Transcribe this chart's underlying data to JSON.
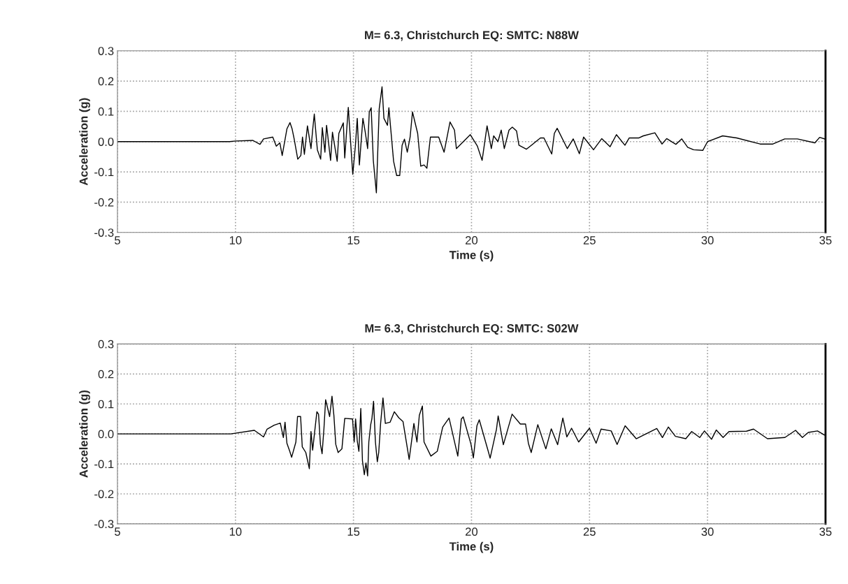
{
  "chart_data": [
    {
      "type": "line",
      "title": "M= 6.3, Christchurch EQ: SMTC: N88W",
      "xlabel": "Time (s)",
      "ylabel": "Acceleration (g)",
      "xlim": [
        5,
        35
      ],
      "ylim": [
        -0.3,
        0.3
      ],
      "xticks": [
        5,
        10,
        15,
        20,
        25,
        30,
        35
      ],
      "yticks": [
        -0.3,
        -0.2,
        -0.1,
        {
          "value": 0,
          "label": "0.0"
        },
        0.1,
        0.2,
        0.3
      ],
      "grid": true,
      "series": [
        {
          "color": "#000000",
          "x": [
            5,
            9.75,
            10,
            10.74,
            11.04,
            11.19,
            11.58,
            11.73,
            11.88,
            11.98,
            12.18,
            12.31,
            12.4,
            12.48,
            12.64,
            12.77,
            12.84,
            12.92,
            13.05,
            13.2,
            13.27,
            13.34,
            13.47,
            13.61,
            13.68,
            13.79,
            13.86,
            14.03,
            14.11,
            14.31,
            14.38,
            14.57,
            14.63,
            14.78,
            14.97,
            15.08,
            15.16,
            15.25,
            15.4,
            15.5,
            15.6,
            15.67,
            15.75,
            15.84,
            15.97,
            16.09,
            16.21,
            16.29,
            16.44,
            16.5,
            16.7,
            16.83,
            16.96,
            17.06,
            17.16,
            17.28,
            17.4,
            17.5,
            17.72,
            17.85,
            17.99,
            18.11,
            18.26,
            18.61,
            18.84,
            19.09,
            19.28,
            19.36,
            19.95,
            20.25,
            20.45,
            20.66,
            20.84,
            20.94,
            21.12,
            21.26,
            21.39,
            21.59,
            21.73,
            21.91,
            22.01,
            22.33,
            22.92,
            23.07,
            23.4,
            23.51,
            23.63,
            24.06,
            24.31,
            24.57,
            24.75,
            25.17,
            25.52,
            25.87,
            26.14,
            26.5,
            26.68,
            27.08,
            27.28,
            27.77,
            28.07,
            28.27,
            28.66,
            28.91,
            29.16,
            29.41,
            29.8,
            30.0,
            30.64,
            31.24,
            32.23,
            32.77,
            33.27,
            33.81,
            34.55,
            34.75,
            35.0
          ],
          "values": [
            0,
            0,
            0.002,
            0.004,
            -0.009,
            0.009,
            0.015,
            -0.015,
            -0.004,
            -0.046,
            0.042,
            0.063,
            0.042,
            0.012,
            -0.058,
            -0.046,
            0.015,
            -0.042,
            0.052,
            -0.023,
            0.038,
            0.091,
            -0.027,
            -0.058,
            0.046,
            -0.035,
            0.054,
            -0.062,
            0.031,
            -0.065,
            0.027,
            0.062,
            -0.054,
            0.113,
            -0.108,
            -0.015,
            0.077,
            -0.077,
            0.077,
            0.031,
            -0.023,
            0.098,
            0.112,
            -0.062,
            -0.169,
            0.108,
            0.181,
            0.077,
            0.054,
            0.112,
            -0.065,
            -0.112,
            -0.112,
            -0.012,
            0.008,
            -0.035,
            0.015,
            0.098,
            0.027,
            -0.081,
            -0.077,
            -0.088,
            0.015,
            0.015,
            -0.035,
            0.065,
            0.038,
            -0.023,
            0.023,
            -0.015,
            -0.062,
            0.052,
            -0.023,
            0.019,
            0.0,
            0.038,
            -0.023,
            0.038,
            0.048,
            0.035,
            -0.012,
            -0.025,
            0.012,
            0.012,
            -0.041,
            0.027,
            0.044,
            -0.023,
            0.009,
            -0.04,
            0.015,
            -0.027,
            0.01,
            -0.017,
            0.023,
            -0.012,
            0.012,
            0.012,
            0.019,
            0.029,
            -0.008,
            0.01,
            -0.009,
            0.009,
            -0.019,
            -0.027,
            -0.029,
            0.0,
            0.019,
            0.012,
            -0.008,
            -0.008,
            0.009,
            0.009,
            -0.004,
            0.014,
            0.008
          ]
        }
      ]
    },
    {
      "type": "line",
      "title": "M= 6.3, Christchurch EQ: SMTC: S02W",
      "xlabel": "Time (s)",
      "ylabel": "Acceleration (g)",
      "xlim": [
        5,
        35
      ],
      "ylim": [
        -0.3,
        0.3
      ],
      "xticks": [
        5,
        10,
        15,
        20,
        25,
        30,
        35
      ],
      "yticks": [
        -0.3,
        -0.2,
        -0.1,
        {
          "value": 0,
          "label": "0.0"
        },
        0.1,
        0.2,
        0.3
      ],
      "grid": true,
      "series": [
        {
          "color": "#000000",
          "x": [
            5,
            9.8,
            10.8,
            11.19,
            11.34,
            11.64,
            11.9,
            12.03,
            12.1,
            12.18,
            12.3,
            12.38,
            12.56,
            12.63,
            12.76,
            12.83,
            12.98,
            13.13,
            13.2,
            13.27,
            13.45,
            13.52,
            13.6,
            13.67,
            13.75,
            13.82,
            13.99,
            14.09,
            14.17,
            14.25,
            14.35,
            14.51,
            14.63,
            14.96,
            15.03,
            15.09,
            15.16,
            15.23,
            15.31,
            15.38,
            15.46,
            15.53,
            15.6,
            15.65,
            15.73,
            15.78,
            15.85,
            15.93,
            16.01,
            16.07,
            16.15,
            16.25,
            16.35,
            16.55,
            16.73,
            16.92,
            17.1,
            17.36,
            17.56,
            17.69,
            17.79,
            17.92,
            17.99,
            18.28,
            18.55,
            18.78,
            19.05,
            19.42,
            19.57,
            19.65,
            19.98,
            20.08,
            20.23,
            20.33,
            20.71,
            20.79,
            21.06,
            21.13,
            21.35,
            21.72,
            22.07,
            22.29,
            22.41,
            22.53,
            22.81,
            23.15,
            23.38,
            23.65,
            23.87,
            24.04,
            24.24,
            24.54,
            25.0,
            25.28,
            25.49,
            25.92,
            26.17,
            26.51,
            26.98,
            27.85,
            28.09,
            28.34,
            28.64,
            29.08,
            29.33,
            29.67,
            29.87,
            30.17,
            30.37,
            30.66,
            30.91,
            31.65,
            31.95,
            32.54,
            33.28,
            33.73,
            34.02,
            34.27,
            34.66,
            34.96
          ],
          "values": [
            0,
            0,
            0.012,
            -0.01,
            0.016,
            0.029,
            0.036,
            -0.012,
            0.039,
            -0.031,
            -0.058,
            -0.078,
            -0.027,
            0.058,
            0.058,
            -0.043,
            -0.062,
            -0.116,
            0.008,
            -0.054,
            0.074,
            0.066,
            -0.035,
            -0.066,
            0.019,
            0.114,
            0.058,
            0.126,
            0.062,
            -0.035,
            -0.062,
            -0.05,
            0.052,
            0.05,
            -0.027,
            0.05,
            -0.023,
            -0.058,
            0.085,
            -0.089,
            -0.136,
            -0.097,
            -0.14,
            -0.027,
            0.031,
            0.05,
            0.109,
            -0.027,
            -0.093,
            -0.062,
            0.035,
            0.12,
            0.035,
            0.039,
            0.074,
            0.054,
            0.041,
            -0.085,
            0.035,
            -0.027,
            0.062,
            0.093,
            -0.027,
            -0.074,
            -0.058,
            0.023,
            0.053,
            -0.074,
            0.05,
            0.057,
            -0.035,
            -0.08,
            0.027,
            0.047,
            -0.058,
            -0.081,
            0.016,
            0.06,
            -0.036,
            0.066,
            0.033,
            0.033,
            -0.031,
            -0.062,
            0.031,
            -0.05,
            0.017,
            -0.036,
            0.053,
            -0.01,
            0.019,
            -0.027,
            0.019,
            -0.031,
            0.016,
            0.01,
            -0.035,
            0.027,
            -0.016,
            0.018,
            -0.012,
            0.023,
            -0.008,
            -0.016,
            0.008,
            -0.012,
            0.01,
            -0.018,
            0.013,
            -0.012,
            0.008,
            0.009,
            0.016,
            -0.016,
            -0.012,
            0.012,
            -0.012,
            0.005,
            0.01,
            -0.004
          ]
        }
      ]
    }
  ]
}
